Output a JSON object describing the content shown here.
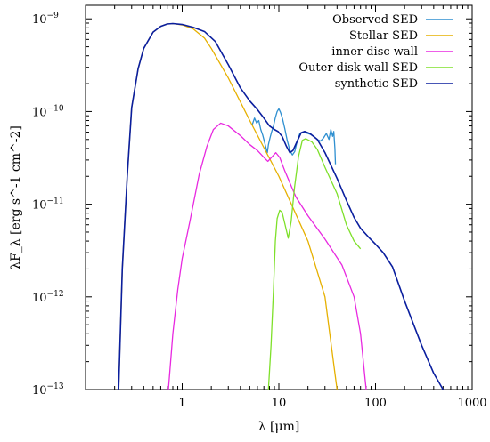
{
  "chart_data": {
    "type": "line",
    "title": "",
    "xlabel": "λ [μm]",
    "ylabel": "λF_λ [erg s^-1 cm^-2]",
    "x_scale": "log",
    "y_scale": "log",
    "xlim": [
      0.1,
      1000
    ],
    "ylim": [
      1e-13,
      1.4e-09
    ],
    "x_ticks": [
      {
        "value": 1,
        "label": "1"
      },
      {
        "value": 10,
        "label": "10"
      },
      {
        "value": 100,
        "label": "100"
      },
      {
        "value": 1000,
        "label": "1000"
      }
    ],
    "y_ticks": [
      {
        "value": 1e-09,
        "base": "10",
        "exp": "−9"
      },
      {
        "value": 1e-10,
        "base": "10",
        "exp": "−10"
      },
      {
        "value": 1e-11,
        "base": "10",
        "exp": "−11"
      },
      {
        "value": 1e-12,
        "base": "10",
        "exp": "−12"
      },
      {
        "value": 1e-13,
        "base": "10",
        "exp": "−13"
      }
    ],
    "grid": false,
    "legend_position": "top-right",
    "series": [
      {
        "name": "Observed SED",
        "color": "#2e8fd0",
        "points": [
          [
            5.3,
            7.2e-11
          ],
          [
            5.6,
            8.5e-11
          ],
          [
            5.9,
            7.5e-11
          ],
          [
            6.2,
            8e-11
          ],
          [
            6.5,
            6.4e-11
          ],
          [
            6.8,
            5.6e-11
          ],
          [
            7.0,
            5e-11
          ],
          [
            7.3,
            4.2e-11
          ],
          [
            7.6,
            3.6e-11
          ],
          [
            7.8,
            4.4e-11
          ],
          [
            8.1,
            5.2e-11
          ],
          [
            8.4,
            6e-11
          ],
          [
            8.8,
            7e-11
          ],
          [
            9.2,
            8.6e-11
          ],
          [
            9.6,
            1e-10
          ],
          [
            10.0,
            1.07e-10
          ],
          [
            10.4,
            9.8e-11
          ],
          [
            10.9,
            8.4e-11
          ],
          [
            11.5,
            6.6e-11
          ],
          [
            12.2,
            4.9e-11
          ],
          [
            13.0,
            3.8e-11
          ],
          [
            13.8,
            3.4e-11
          ],
          [
            14.6,
            3.7e-11
          ],
          [
            15.5,
            4.8e-11
          ],
          [
            16.5,
            5.8e-11
          ],
          [
            17.5,
            6e-11
          ],
          [
            19.0,
            5.9e-11
          ],
          [
            21.0,
            5.7e-11
          ],
          [
            23.0,
            5.4e-11
          ],
          [
            25.0,
            5e-11
          ],
          [
            27.0,
            4.8e-11
          ],
          [
            29.0,
            5.2e-11
          ],
          [
            31.0,
            5.8e-11
          ],
          [
            33.0,
            5e-11
          ],
          [
            34.5,
            6.4e-11
          ],
          [
            36.0,
            5.4e-11
          ],
          [
            37.0,
            6.1e-11
          ],
          [
            38.0,
            4e-11
          ],
          [
            38.5,
            2.7e-11
          ]
        ]
      },
      {
        "name": "Stellar SED",
        "color": "#e6b000",
        "points": [
          [
            0.22,
            1e-13
          ],
          [
            0.24,
            2e-12
          ],
          [
            0.27,
            2e-11
          ],
          [
            0.3,
            1.1e-10
          ],
          [
            0.35,
            2.9e-10
          ],
          [
            0.4,
            4.8e-10
          ],
          [
            0.5,
            7.2e-10
          ],
          [
            0.6,
            8.3e-10
          ],
          [
            0.7,
            8.8e-10
          ],
          [
            0.8,
            8.9e-10
          ],
          [
            1.0,
            8.6e-10
          ],
          [
            1.3,
            7.8e-10
          ],
          [
            1.7,
            6.2e-10
          ],
          [
            2.0,
            4.8e-10
          ],
          [
            3.0,
            2.3e-10
          ],
          [
            5.0,
            8e-11
          ],
          [
            10.0,
            2e-11
          ],
          [
            20.0,
            4e-12
          ],
          [
            30.0,
            1e-12
          ],
          [
            40.0,
            1e-13
          ]
        ]
      },
      {
        "name": "inner disc wall",
        "color": "#e829e0",
        "points": [
          [
            0.72,
            1e-13
          ],
          [
            0.8,
            4e-13
          ],
          [
            0.9,
            1.2e-12
          ],
          [
            1.0,
            2.6e-12
          ],
          [
            1.2,
            6.5e-12
          ],
          [
            1.5,
            2.1e-11
          ],
          [
            1.8,
            4.2e-11
          ],
          [
            2.1,
            6.4e-11
          ],
          [
            2.5,
            7.5e-11
          ],
          [
            3.0,
            7e-11
          ],
          [
            4.0,
            5.5e-11
          ],
          [
            5.0,
            4.4e-11
          ],
          [
            6.0,
            3.8e-11
          ],
          [
            7.0,
            3.2e-11
          ],
          [
            7.7,
            2.9e-11
          ],
          [
            8.4,
            3.2e-11
          ],
          [
            9.3,
            3.6e-11
          ],
          [
            10.2,
            3.2e-11
          ],
          [
            11.5,
            2.3e-11
          ],
          [
            13.0,
            1.7e-11
          ],
          [
            15.0,
            1.2e-11
          ],
          [
            20.0,
            7.5e-12
          ],
          [
            30.0,
            4.2e-12
          ],
          [
            45.0,
            2.2e-12
          ],
          [
            60.0,
            1e-12
          ],
          [
            70.0,
            4e-13
          ],
          [
            80.0,
            1e-13
          ]
        ]
      },
      {
        "name": "Outer disk wall SED",
        "color": "#7ee02a",
        "points": [
          [
            7.8,
            1e-13
          ],
          [
            8.3,
            3e-13
          ],
          [
            8.8,
            1.2e-12
          ],
          [
            9.2,
            4e-12
          ],
          [
            9.6,
            7e-12
          ],
          [
            10.2,
            8.6e-12
          ],
          [
            10.8,
            8.2e-12
          ],
          [
            11.6,
            6e-12
          ],
          [
            12.5,
            4.3e-12
          ],
          [
            13.4,
            6.5e-12
          ],
          [
            14.5,
            1.5e-11
          ],
          [
            16.0,
            3.3e-11
          ],
          [
            17.5,
            4.9e-11
          ],
          [
            19.0,
            5.1e-11
          ],
          [
            22.0,
            4.7e-11
          ],
          [
            25.0,
            3.9e-11
          ],
          [
            30.0,
            2.5e-11
          ],
          [
            40.0,
            1.3e-11
          ],
          [
            50.0,
            6e-12
          ],
          [
            60.0,
            4e-12
          ],
          [
            70.0,
            3.3e-12
          ]
        ]
      },
      {
        "name": "synthetic SED",
        "color": "#0a1e9e",
        "points": [
          [
            0.22,
            1e-13
          ],
          [
            0.24,
            2e-12
          ],
          [
            0.27,
            2e-11
          ],
          [
            0.3,
            1.1e-10
          ],
          [
            0.35,
            2.9e-10
          ],
          [
            0.4,
            4.8e-10
          ],
          [
            0.5,
            7.2e-10
          ],
          [
            0.6,
            8.3e-10
          ],
          [
            0.7,
            8.8e-10
          ],
          [
            0.8,
            8.9e-10
          ],
          [
            1.0,
            8.7e-10
          ],
          [
            1.3,
            8.1e-10
          ],
          [
            1.7,
            7.3e-10
          ],
          [
            2.2,
            5.7e-10
          ],
          [
            3.0,
            3.2e-10
          ],
          [
            4.0,
            1.8e-10
          ],
          [
            5.0,
            1.3e-10
          ],
          [
            6.0,
            1.05e-10
          ],
          [
            7.0,
            8.5e-11
          ],
          [
            8.0,
            7e-11
          ],
          [
            9.0,
            6.4e-11
          ],
          [
            9.8,
            6.1e-11
          ],
          [
            10.8,
            5.4e-11
          ],
          [
            12.0,
            4.2e-11
          ],
          [
            13.0,
            3.6e-11
          ],
          [
            14.0,
            3.8e-11
          ],
          [
            15.5,
            4.8e-11
          ],
          [
            17.0,
            5.9e-11
          ],
          [
            18.5,
            6.1e-11
          ],
          [
            21.0,
            5.8e-11
          ],
          [
            25.0,
            5e-11
          ],
          [
            30.0,
            3.6e-11
          ],
          [
            40.0,
            1.9e-11
          ],
          [
            50.0,
            1.1e-11
          ],
          [
            60.0,
            7.2e-12
          ],
          [
            70.0,
            5.5e-12
          ],
          [
            85.0,
            4.4e-12
          ],
          [
            100.0,
            3.7e-12
          ],
          [
            120.0,
            3e-12
          ],
          [
            150.0,
            2.1e-12
          ],
          [
            200.0,
            9e-13
          ],
          [
            300.0,
            3e-13
          ],
          [
            400.0,
            1.5e-13
          ],
          [
            500.0,
            1e-13
          ]
        ]
      }
    ]
  }
}
